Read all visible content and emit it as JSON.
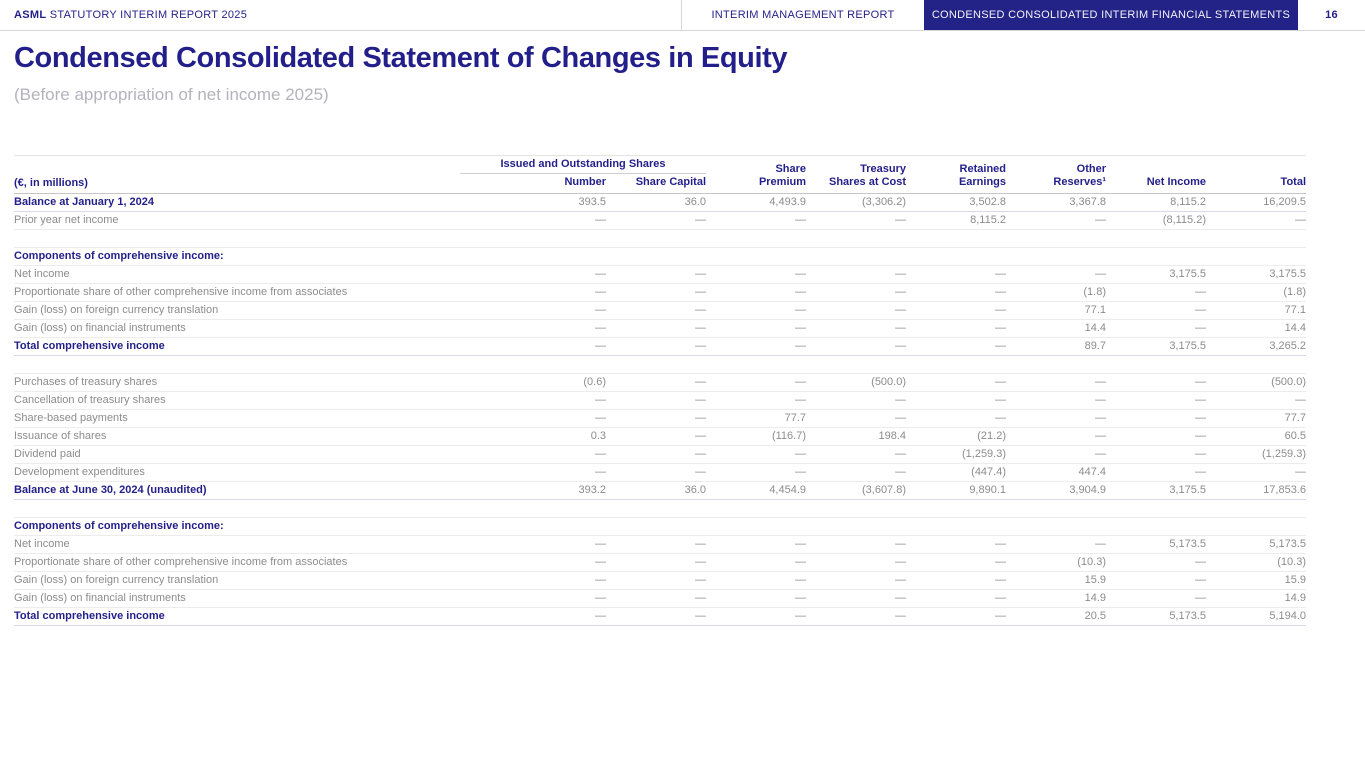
{
  "topbar": {
    "brand_bold": "ASML",
    "brand_rest": " STATUTORY INTERIM REPORT 2025",
    "tab_management": "INTERIM MANAGEMENT REPORT",
    "tab_financial": "CONDENSED CONSOLIDATED INTERIM FINANCIAL STATEMENTS",
    "page_number": "16"
  },
  "title": "Condensed Consolidated Statement of Changes in Equity",
  "subtitle": "(Before appropriation of net income 2025)",
  "colors": {
    "brand_navy": "#231f8a",
    "tab_navy_bg": "#232387",
    "data_gray": "#8c8c8c",
    "subtitle_gray": "#b3b3bc"
  },
  "table": {
    "unit_label": "(€, in millions)",
    "group_header": "Issued and Outstanding Shares",
    "columns": [
      {
        "id": "number",
        "label": "Number",
        "group": "issued"
      },
      {
        "id": "share-capital",
        "label": "Share Capital",
        "group": "issued"
      },
      {
        "id": "share-premium",
        "label": "Share\nPremium"
      },
      {
        "id": "treasury-shares-at-cost",
        "label": "Treasury\nShares at Cost"
      },
      {
        "id": "retained-earnings",
        "label": "Retained\nEarnings"
      },
      {
        "id": "other-reserves",
        "label": "Other\nReserves¹"
      },
      {
        "id": "net-income",
        "label": "Net Income"
      },
      {
        "id": "total",
        "label": "Total"
      }
    ],
    "rows": [
      {
        "type": "bold",
        "label": "Balance at January 1, 2024",
        "values": [
          "393.5",
          "36.0",
          "4,493.9",
          "(3,306.2)",
          "3,502.8",
          "3,367.8",
          "8,115.2",
          "16,209.5"
        ]
      },
      {
        "type": "data",
        "label": "Prior year net income",
        "values": [
          "—",
          "—",
          "—",
          "—",
          "8,115.2",
          "—",
          "(8,115.2)",
          "—"
        ]
      },
      {
        "type": "gap"
      },
      {
        "type": "section",
        "label": "Components of comprehensive income:"
      },
      {
        "type": "data",
        "label": "Net income",
        "values": [
          "—",
          "—",
          "—",
          "—",
          "—",
          "—",
          "3,175.5",
          "3,175.5"
        ]
      },
      {
        "type": "data",
        "label": "Proportionate share of other comprehensive income from associates",
        "values": [
          "—",
          "—",
          "—",
          "—",
          "—",
          "(1.8)",
          "—",
          "(1.8)"
        ]
      },
      {
        "type": "data",
        "label": "Gain (loss) on foreign currency translation",
        "values": [
          "—",
          "—",
          "—",
          "—",
          "—",
          "77.1",
          "—",
          "77.1"
        ]
      },
      {
        "type": "data",
        "label": "Gain (loss) on financial instruments",
        "values": [
          "—",
          "—",
          "—",
          "—",
          "—",
          "14.4",
          "—",
          "14.4"
        ]
      },
      {
        "type": "bold",
        "label": "Total comprehensive income",
        "values": [
          "—",
          "—",
          "—",
          "—",
          "—",
          "89.7",
          "3,175.5",
          "3,265.2"
        ]
      },
      {
        "type": "gap"
      },
      {
        "type": "data",
        "label": "Purchases of treasury shares",
        "values": [
          "(0.6)",
          "—",
          "—",
          "(500.0)",
          "—",
          "—",
          "—",
          "(500.0)"
        ]
      },
      {
        "type": "data",
        "label": "Cancellation of treasury shares",
        "values": [
          "—",
          "—",
          "—",
          "—",
          "—",
          "—",
          "—",
          "—"
        ]
      },
      {
        "type": "data",
        "label": "Share-based payments",
        "values": [
          "—",
          "—",
          "77.7",
          "—",
          "—",
          "—",
          "—",
          "77.7"
        ]
      },
      {
        "type": "data",
        "label": "Issuance of shares",
        "values": [
          "0.3",
          "—",
          "(116.7)",
          "198.4",
          "(21.2)",
          "—",
          "—",
          "60.5"
        ]
      },
      {
        "type": "data",
        "label": "Dividend paid",
        "values": [
          "—",
          "—",
          "—",
          "—",
          "(1,259.3)",
          "—",
          "—",
          "(1,259.3)"
        ]
      },
      {
        "type": "data",
        "label": "Development expenditures",
        "values": [
          "—",
          "—",
          "—",
          "—",
          "(447.4)",
          "447.4",
          "—",
          "—"
        ]
      },
      {
        "type": "bold",
        "label": "Balance at June 30, 2024 (unaudited)",
        "values": [
          "393.2",
          "36.0",
          "4,454.9",
          "(3,607.8)",
          "9,890.1",
          "3,904.9",
          "3,175.5",
          "17,853.6"
        ]
      },
      {
        "type": "gap"
      },
      {
        "type": "section",
        "label": "Components of comprehensive income:"
      },
      {
        "type": "data",
        "label": "Net income",
        "values": [
          "—",
          "—",
          "—",
          "—",
          "—",
          "—",
          "5,173.5",
          "5,173.5"
        ]
      },
      {
        "type": "data",
        "label": "Proportionate share of other comprehensive income from associates",
        "values": [
          "—",
          "—",
          "—",
          "—",
          "—",
          "(10.3)",
          "—",
          "(10.3)"
        ]
      },
      {
        "type": "data",
        "label": "Gain (loss) on foreign currency translation",
        "values": [
          "—",
          "—",
          "—",
          "—",
          "—",
          "15.9",
          "—",
          "15.9"
        ]
      },
      {
        "type": "data",
        "label": "Gain (loss) on financial instruments",
        "values": [
          "—",
          "—",
          "—",
          "—",
          "—",
          "14.9",
          "—",
          "14.9"
        ]
      },
      {
        "type": "bold",
        "label": "Total comprehensive income",
        "values": [
          "—",
          "—",
          "—",
          "—",
          "—",
          "20.5",
          "5,173.5",
          "5,194.0"
        ]
      }
    ]
  }
}
